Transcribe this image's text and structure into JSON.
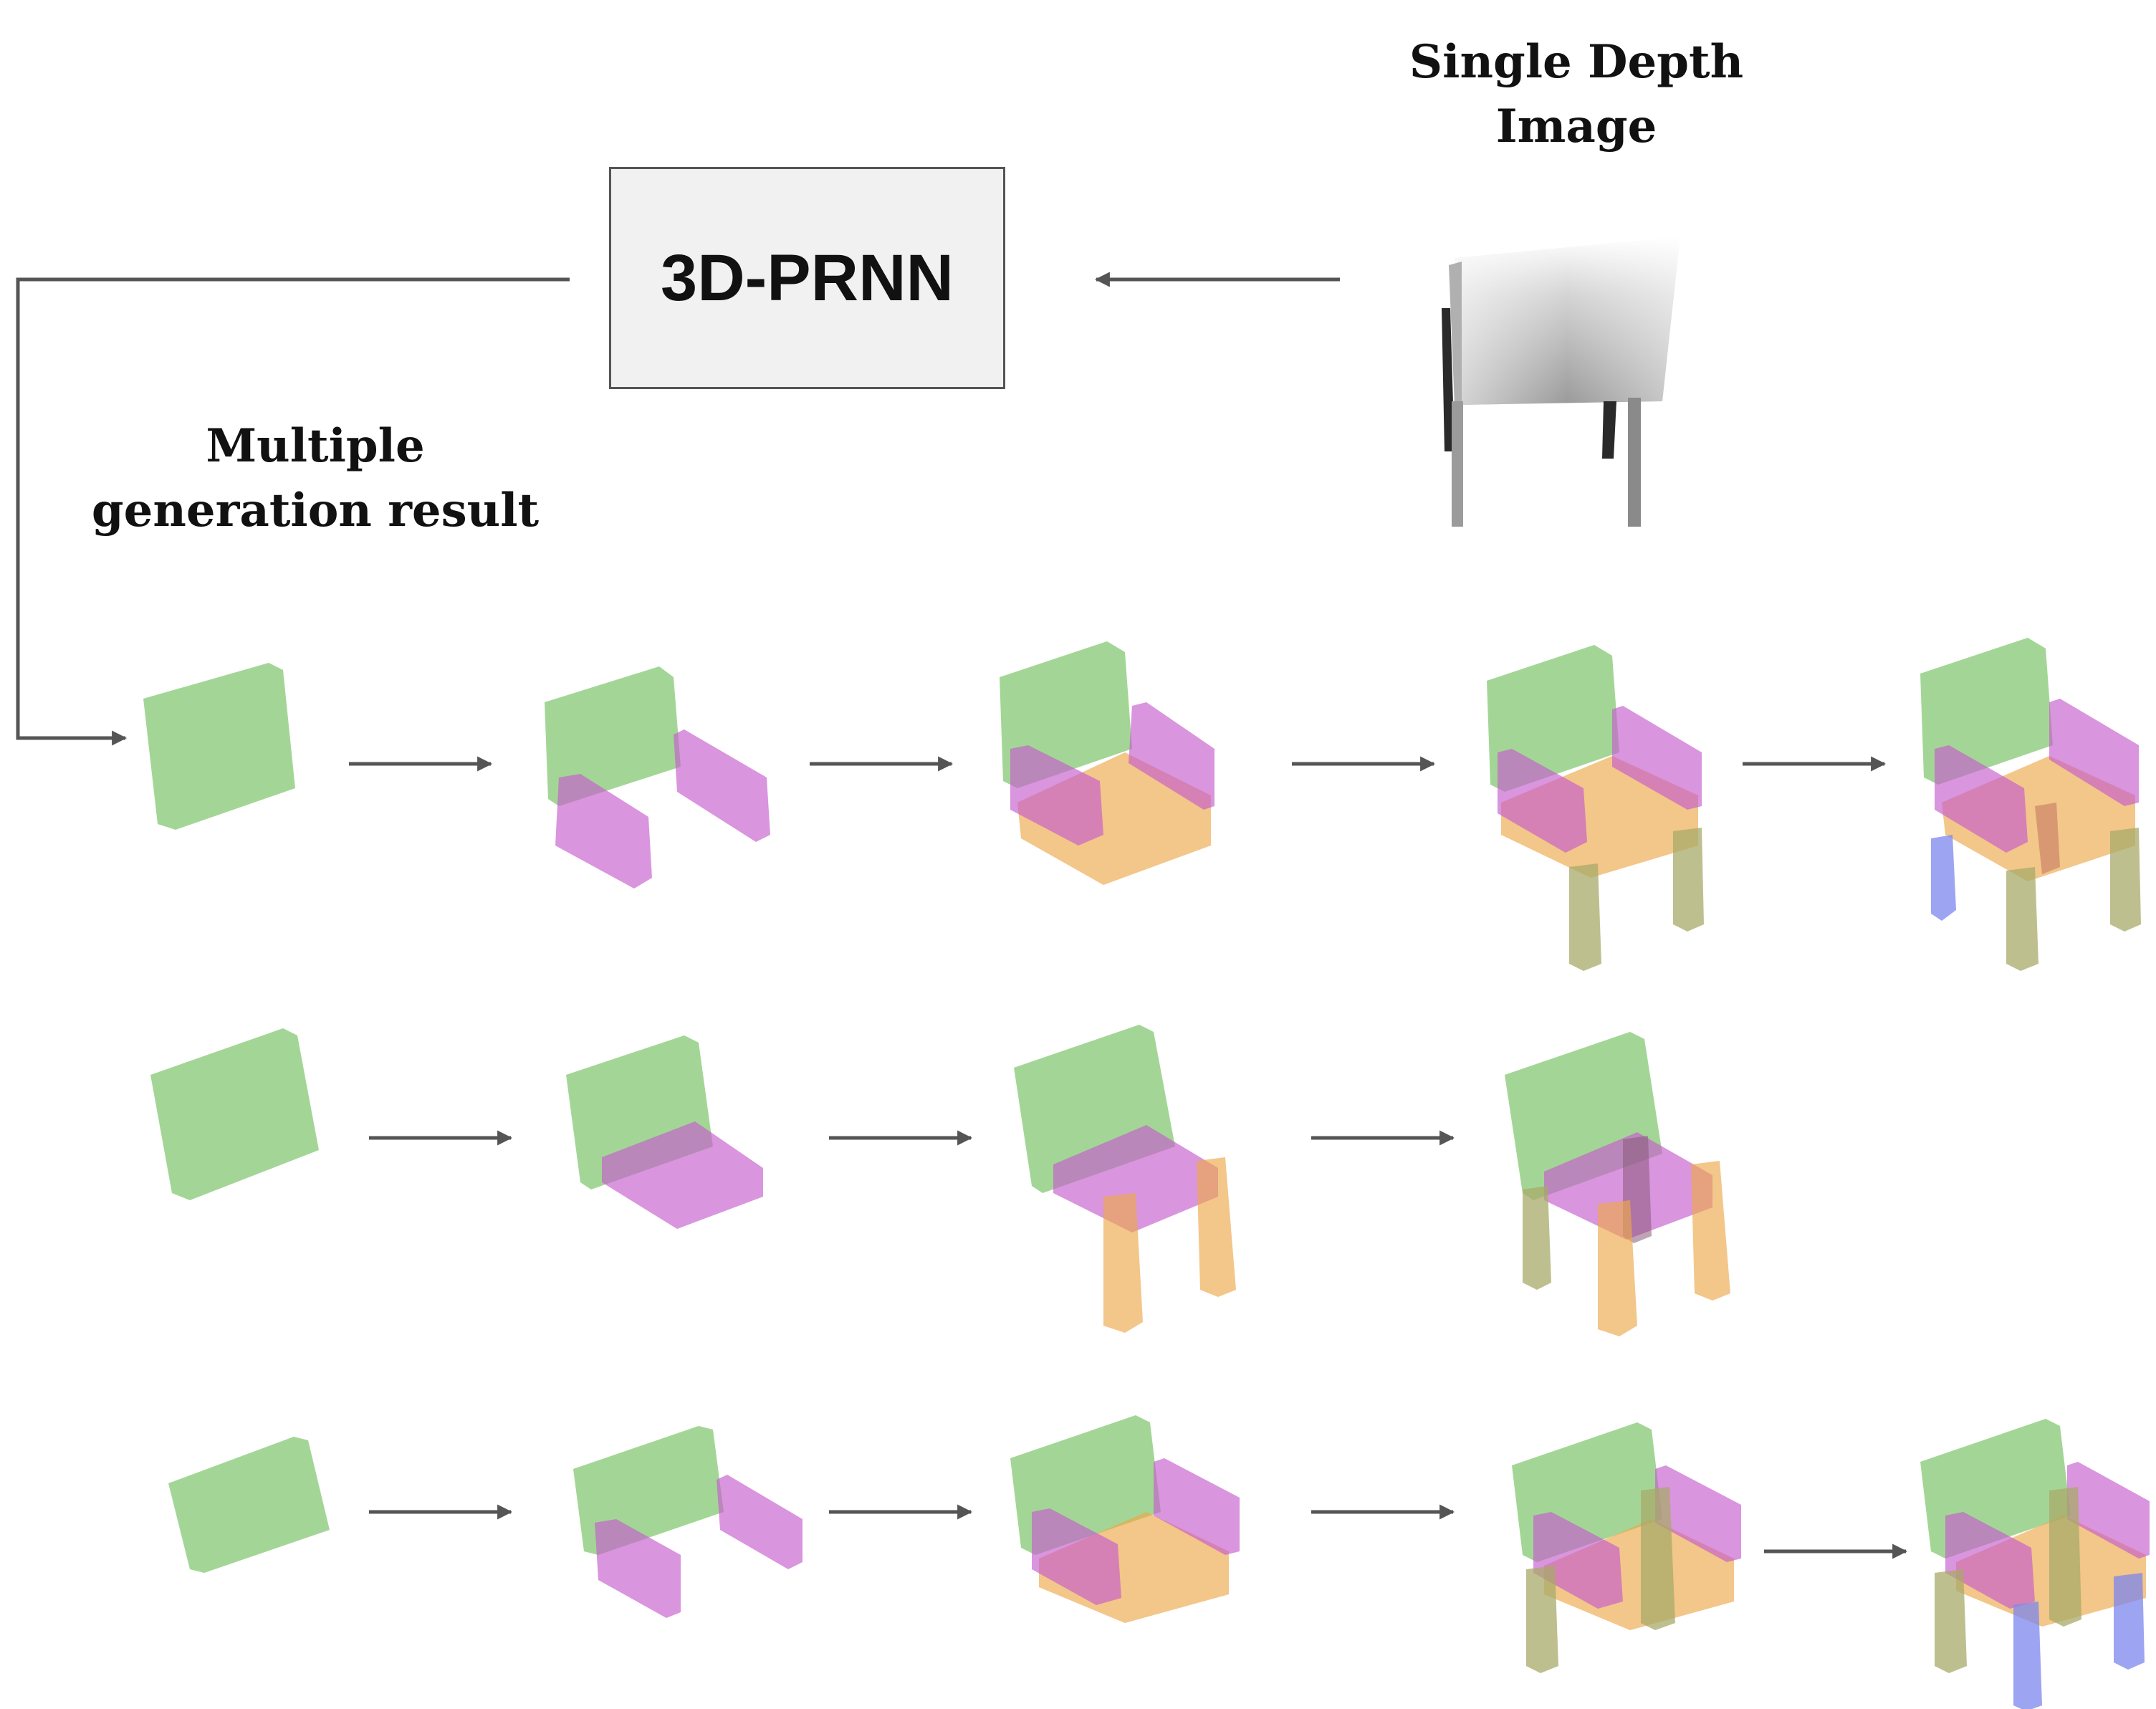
{
  "labels": {
    "input_title_line1": "Single Depth",
    "input_title_line2": "Image",
    "model_name": "3D-PRNN",
    "output_title_line1": "Multiple",
    "output_title_line2": "generation result"
  },
  "colors": {
    "arrow": "#555555",
    "back": "#7cc46a",
    "arm": "#c45ccc",
    "seat": "#eca84a",
    "leg": "#a8aa6a",
    "leg_blue": "#7c86ee"
  }
}
